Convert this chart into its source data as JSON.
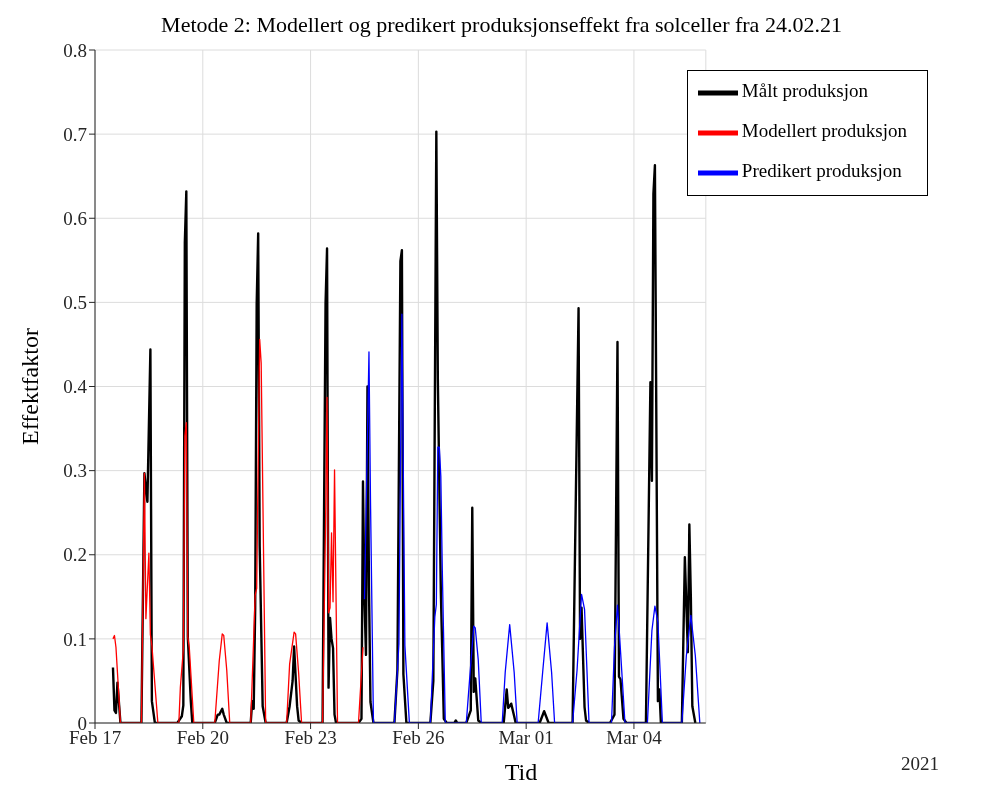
{
  "chart_data": {
    "type": "line",
    "title": "Metode 2: Modellert og predikert produksjonseffekt fra solceller fra 24.02.21",
    "xlabel": "Tid",
    "ylabel": "Effektfaktor",
    "annotations": [
      "2021"
    ],
    "xlim": [
      "2021-02-17",
      "2021-03-06"
    ],
    "xticks": [
      {
        "value": "2021-02-17",
        "label": "Feb 17"
      },
      {
        "value": "2021-02-20",
        "label": "Feb 20"
      },
      {
        "value": "2021-02-23",
        "label": "Feb 23"
      },
      {
        "value": "2021-02-26",
        "label": "Feb 26"
      },
      {
        "value": "2021-03-01",
        "label": "Mar 01"
      },
      {
        "value": "2021-03-04",
        "label": "Mar 04"
      }
    ],
    "ylim": [
      0,
      0.8
    ],
    "yticks": [
      0,
      0.1,
      0.2,
      0.3,
      0.4,
      0.5,
      0.6,
      0.7,
      0.8
    ],
    "grid": true,
    "legend": "top right",
    "marker": "none",
    "line_style": "solid",
    "series": [
      {
        "name": "Målt produksjon",
        "color": "#000000",
        "x": [
          "2021-02-17T12:00",
          "2021-02-17T13:00",
          "2021-02-17T14:00",
          "2021-02-17T15:00",
          "2021-02-17T17:00",
          "2021-02-18T07:00",
          "2021-02-18T09:00",
          "2021-02-18T11:00",
          "2021-02-18T13:00",
          "2021-02-18T14:00",
          "2021-02-18T16:00",
          "2021-02-19T07:00",
          "2021-02-19T10:00",
          "2021-02-19T11:00",
          "2021-02-19T12:00",
          "2021-02-19T13:00",
          "2021-02-19T14:00",
          "2021-02-19T16:00",
          "2021-02-19T17:00",
          "2021-02-20T08:00",
          "2021-02-20T10:00",
          "2021-02-20T11:00",
          "2021-02-20T13:00",
          "2021-02-20T14:00",
          "2021-02-20T16:00",
          "2021-02-21T08:00",
          "2021-02-21T09:00",
          "2021-02-21T10:00",
          "2021-02-21T11:00",
          "2021-02-21T12:00",
          "2021-02-21T13:00",
          "2021-02-21T14:00",
          "2021-02-21T16:00",
          "2021-02-21T18:00",
          "2021-02-22T08:00",
          "2021-02-22T10:00",
          "2021-02-22T12:00",
          "2021-02-22T13:00",
          "2021-02-22T15:00",
          "2021-02-22T16:00",
          "2021-02-22T18:00",
          "2021-02-23T08:00",
          "2021-02-23T10:00",
          "2021-02-23T11:00",
          "2021-02-23T12:00",
          "2021-02-23T13:00",
          "2021-02-23T14:00",
          "2021-02-23T15:00",
          "2021-02-23T16:00",
          "2021-02-23T17:00",
          "2021-02-24T08:00",
          "2021-02-24T10:00",
          "2021-02-24T11:00",
          "2021-02-24T12:00",
          "2021-02-24T13:00",
          "2021-02-24T14:00",
          "2021-02-24T15:00",
          "2021-02-24T16:00",
          "2021-02-24T18:00",
          "2021-02-25T08:00",
          "2021-02-25T10:00",
          "2021-02-25T12:00",
          "2021-02-25T13:00",
          "2021-02-25T14:00",
          "2021-02-25T16:00",
          "2021-02-26T08:00",
          "2021-02-26T10:00",
          "2021-02-26T12:00",
          "2021-02-26T13:00",
          "2021-02-26T15:00",
          "2021-02-26T17:00",
          "2021-02-26T19:00",
          "2021-02-27T00:00",
          "2021-02-27T01:00",
          "2021-02-27T02:00",
          "2021-02-27T08:00",
          "2021-02-27T11:00",
          "2021-02-27T12:00",
          "2021-02-27T13:00",
          "2021-02-27T14:00",
          "2021-02-27T16:00",
          "2021-02-27T18:00",
          "2021-02-28T09:00",
          "2021-02-28T11:00",
          "2021-02-28T12:00",
          "2021-02-28T13:00",
          "2021-02-28T14:00",
          "2021-02-28T16:00",
          "2021-02-28T17:00",
          "2021-03-01T09:00",
          "2021-03-01T12:00",
          "2021-03-01T15:00",
          "2021-03-02T07:00",
          "2021-03-02T11:00",
          "2021-03-02T12:00",
          "2021-03-02T13:00",
          "2021-03-02T15:00",
          "2021-03-02T16:00",
          "2021-03-02T18:00",
          "2021-03-03T08:00",
          "2021-03-03T11:00",
          "2021-03-03T13:00",
          "2021-03-03T14:00",
          "2021-03-03T15:00",
          "2021-03-03T17:00",
          "2021-03-03T19:00",
          "2021-03-04T08:00",
          "2021-03-04T11:00",
          "2021-03-04T12:00",
          "2021-03-04T13:00",
          "2021-03-04T14:00",
          "2021-03-04T16:00",
          "2021-03-04T17:00",
          "2021-03-04T18:00",
          "2021-03-05T08:00",
          "2021-03-05T10:00",
          "2021-03-05T12:00",
          "2021-03-05T13:00",
          "2021-03-05T14:00",
          "2021-03-05T15:00",
          "2021-03-05T17:00"
        ],
        "values": [
          0.066,
          0.015,
          0.012,
          0.048,
          0,
          0,
          0.297,
          0.263,
          0.444,
          0.026,
          0,
          0,
          0.008,
          0.021,
          0.571,
          0.632,
          0.102,
          0.026,
          0,
          0,
          0.01,
          0.01,
          0.017,
          0.01,
          0,
          0,
          0.026,
          0.017,
          0.137,
          0.498,
          0.582,
          0.21,
          0.02,
          0,
          0,
          0.02,
          0.05,
          0.091,
          0.02,
          0.003,
          0,
          0,
          0.498,
          0.564,
          0.042,
          0.125,
          0.1,
          0.089,
          0.01,
          0,
          0,
          0.005,
          0.287,
          0.147,
          0.081,
          0.4,
          0.163,
          0.025,
          0,
          0,
          0.063,
          0.549,
          0.562,
          0.058,
          0,
          0,
          0.05,
          0.703,
          0.409,
          0.157,
          0.005,
          0,
          0,
          0.003,
          0,
          0,
          0.015,
          0.256,
          0.037,
          0.053,
          0.003,
          0,
          0,
          0.04,
          0.018,
          0.02,
          0.023,
          0.008,
          0,
          0,
          0.014,
          0,
          0,
          0.493,
          0.1,
          0.137,
          0.019,
          0.003,
          0,
          0,
          0.01,
          0.453,
          0.055,
          0.052,
          0.005,
          0,
          0,
          0.405,
          0.288,
          0.629,
          0.663,
          0.026,
          0.04,
          0,
          0,
          0.197,
          0.084,
          0.236,
          0.15,
          0.02,
          0
        ]
      },
      {
        "name": "Modellert produksjon",
        "color": "#ff0000",
        "x": [
          "2021-02-17T12:00",
          "2021-02-17T13:00",
          "2021-02-17T14:00",
          "2021-02-17T15:00",
          "2021-02-17T17:00",
          "2021-02-18T07:00",
          "2021-02-18T09:00",
          "2021-02-18T10:00",
          "2021-02-18T12:00",
          "2021-02-18T13:00",
          "2021-02-18T14:00",
          "2021-02-18T18:00",
          "2021-02-19T08:00",
          "2021-02-19T09:00",
          "2021-02-19T11:00",
          "2021-02-19T12:00",
          "2021-02-19T13:00",
          "2021-02-19T14:00",
          "2021-02-19T15:00",
          "2021-02-19T18:00",
          "2021-02-20T08:00",
          "2021-02-20T11:00",
          "2021-02-20T13:00",
          "2021-02-20T14:00",
          "2021-02-20T16:00",
          "2021-02-20T18:00",
          "2021-02-21T08:00",
          "2021-02-21T11:00",
          "2021-02-21T12:00",
          "2021-02-21T14:00",
          "2021-02-21T15:00",
          "2021-02-21T18:00",
          "2021-02-22T08:00",
          "2021-02-22T10:00",
          "2021-02-22T13:00",
          "2021-02-22T14:00",
          "2021-02-22T16:00",
          "2021-02-22T18:00",
          "2021-02-23T08:00",
          "2021-02-23T10:00",
          "2021-02-23T11:00",
          "2021-02-23T12:00",
          "2021-02-23T13:00",
          "2021-02-23T14:00",
          "2021-02-23T15:00",
          "2021-02-23T16:00",
          "2021-02-23T18:00",
          "2021-02-24T08:00",
          "2021-02-24T11:00"
        ],
        "values": [
          0.1,
          0.104,
          0.09,
          0.06,
          0,
          0,
          0.297,
          0.124,
          0.202,
          0.105,
          0.092,
          0,
          0,
          0.042,
          0.087,
          0.341,
          0.357,
          0.102,
          0.089,
          0,
          0,
          0.074,
          0.106,
          0.104,
          0.063,
          0,
          0,
          0.152,
          0.16,
          0.456,
          0.428,
          0,
          0,
          0.07,
          0.108,
          0.106,
          0.06,
          0,
          0,
          0.236,
          0.387,
          0.131,
          0.137,
          0.226,
          0.144,
          0.301,
          0,
          0,
          0.09
        ]
      },
      {
        "name": "Predikert produksjon",
        "color": "#0000ff",
        "x": [
          "2021-02-24T12:00",
          "2021-02-24T14:00",
          "2021-02-24T15:00",
          "2021-02-24T16:00",
          "2021-02-24T18:00",
          "2021-02-25T08:00",
          "2021-02-25T11:00",
          "2021-02-25T13:00",
          "2021-02-25T15:00",
          "2021-02-25T18:00",
          "2021-02-26T08:00",
          "2021-02-26T11:00",
          "2021-02-26T12:00",
          "2021-02-26T13:00",
          "2021-02-26T14:00",
          "2021-02-26T15:00",
          "2021-02-26T16:00",
          "2021-02-26T18:00",
          "2021-02-27T08:00",
          "2021-02-27T11:00",
          "2021-02-27T13:00",
          "2021-02-27T14:00",
          "2021-02-27T16:00",
          "2021-02-27T18:00",
          "2021-02-28T08:00",
          "2021-02-28T10:00",
          "2021-02-28T13:00",
          "2021-02-28T16:00",
          "2021-02-28T18:00",
          "2021-03-01T08:00",
          "2021-03-01T11:00",
          "2021-03-01T14:00",
          "2021-03-01T17:00",
          "2021-03-01T19:00",
          "2021-03-02T07:00",
          "2021-03-02T10:00",
          "2021-03-02T13:00",
          "2021-03-02T15:00",
          "2021-03-02T18:00",
          "2021-03-03T09:00",
          "2021-03-03T11:00",
          "2021-03-03T13:00",
          "2021-03-03T14:00",
          "2021-03-03T18:00",
          "2021-03-04T09:00",
          "2021-03-04T12:00",
          "2021-03-04T14:00",
          "2021-03-04T16:00",
          "2021-03-04T19:00",
          "2021-03-05T08:00",
          "2021-03-05T11:00",
          "2021-03-05T14:00",
          "2021-03-05T17:00",
          "2021-03-05T20:00"
        ],
        "values": [
          0.147,
          0.341,
          0.441,
          0.267,
          0,
          0,
          0.094,
          0.486,
          0.092,
          0,
          0,
          0.126,
          0.141,
          0.328,
          0.328,
          0.293,
          0.18,
          0,
          0,
          0.07,
          0.115,
          0.113,
          0.075,
          0,
          0,
          0.06,
          0.117,
          0.06,
          0,
          0,
          0.06,
          0.119,
          0.06,
          0,
          0,
          0.063,
          0.153,
          0.135,
          0,
          0,
          0.09,
          0.14,
          0.115,
          0,
          0,
          0.11,
          0.139,
          0.12,
          0,
          0,
          0.08,
          0.128,
          0.08,
          0
        ]
      }
    ]
  }
}
